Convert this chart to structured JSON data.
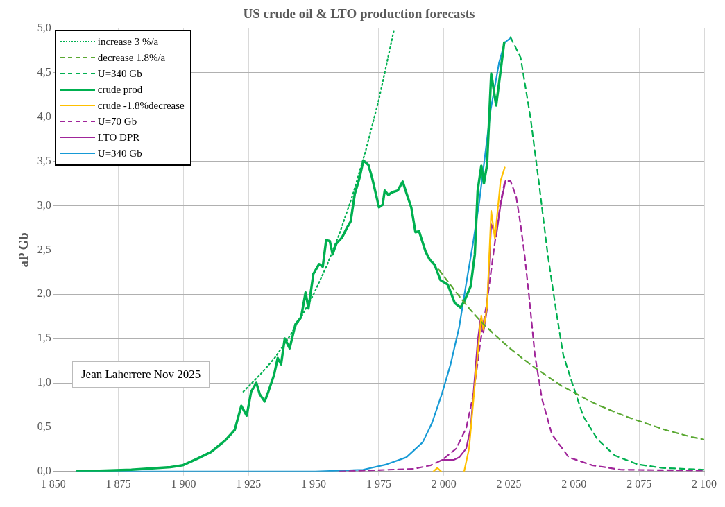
{
  "chart_data": {
    "type": "line",
    "title": "US crude oil & LTO production forecasts",
    "ylabel": "aP Gb",
    "xlim": [
      1850,
      2100
    ],
    "xticks": [
      {
        "value": 1850,
        "label": "1 850"
      },
      {
        "value": 1875,
        "label": "1 875"
      },
      {
        "value": 1900,
        "label": "1 900"
      },
      {
        "value": 1925,
        "label": "1 925"
      },
      {
        "value": 1950,
        "label": "1 950"
      },
      {
        "value": 1975,
        "label": "1 975"
      },
      {
        "value": 2000,
        "label": "2 000"
      },
      {
        "value": 2025,
        "label": "2 025"
      },
      {
        "value": 2050,
        "label": "2 050"
      },
      {
        "value": 2075,
        "label": "2 075"
      },
      {
        "value": 2100,
        "label": "2 100"
      }
    ],
    "ylim": [
      0,
      5
    ],
    "yticks": [
      {
        "value": 0,
        "label": "0,0"
      },
      {
        "value": 0.5,
        "label": "0,5"
      },
      {
        "value": 1,
        "label": "1,0"
      },
      {
        "value": 1.5,
        "label": "1,5"
      },
      {
        "value": 2,
        "label": "2,0"
      },
      {
        "value": 2.5,
        "label": "2,5"
      },
      {
        "value": 3,
        "label": "3,0"
      },
      {
        "value": 3.5,
        "label": "3,5"
      },
      {
        "value": 4,
        "label": "4,0"
      },
      {
        "value": 4.5,
        "label": "4,5"
      },
      {
        "value": 5,
        "label": "5,0"
      }
    ],
    "grid": true,
    "legend": "top left",
    "marker": "none",
    "annotations": [
      "Jean Laherrere Nov 2025"
    ],
    "series": [
      {
        "name": "increase 3 %/a",
        "color": "#00b050",
        "line_style": "dotted",
        "x": [
          1923,
          1930,
          1935,
          1940,
          1945,
          1950,
          1955,
          1960,
          1965,
          1970,
          1975,
          1981
        ],
        "values": [
          0.9,
          1.11,
          1.28,
          1.49,
          1.73,
          2.0,
          2.32,
          2.69,
          3.12,
          3.62,
          4.19,
          5.0
        ]
      },
      {
        "name": "decrease 1.8%/a",
        "color": "#5aa832",
        "line_style": "dashed",
        "x": [
          1998,
          2005,
          2010,
          2015,
          2020,
          2025,
          2030,
          2035,
          2040,
          2045,
          2050,
          2055,
          2060,
          2065,
          2070,
          2075,
          2080,
          2085,
          2090,
          2095,
          2100
        ],
        "values": [
          2.28,
          2.01,
          1.83,
          1.67,
          1.53,
          1.4,
          1.28,
          1.17,
          1.07,
          0.97,
          0.89,
          0.81,
          0.74,
          0.68,
          0.62,
          0.57,
          0.52,
          0.47,
          0.43,
          0.39,
          0.36
        ]
      },
      {
        "name": "U=340 Gb",
        "color": "#00b050",
        "line_style": "dashed",
        "x": [
          2025.6,
          2029.5,
          2033.3,
          2036.6,
          2039.9,
          2043.2,
          2045.9,
          2049.5,
          2053.6,
          2059.1,
          2065.7,
          2074.5,
          2084,
          2100
        ],
        "values": [
          4.9,
          4.67,
          3.99,
          3.24,
          2.45,
          1.8,
          1.31,
          0.98,
          0.62,
          0.36,
          0.18,
          0.08,
          0.04,
          0.02
        ]
      },
      {
        "name": "crude prod",
        "color": "#00b050",
        "line_style": "solid",
        "x": [
          1859,
          1870,
          1880,
          1890,
          1895,
          1899.7,
          1905,
          1910.6,
          1916,
          1919.7,
          1922.2,
          1924.3,
          1926,
          1928,
          1929.3,
          1931.2,
          1932.6,
          1934.8,
          1936.2,
          1937.5,
          1938.9,
          1940.8,
          1943,
          1945.2,
          1946.9,
          1948,
          1949.9,
          1952.1,
          1953.5,
          1954.8,
          1956.2,
          1957.3,
          1958.7,
          1960.9,
          1962.8,
          1964.2,
          1965.8,
          1967.7,
          1969.1,
          1971,
          1972.4,
          1975.1,
          1976.5,
          1977.3,
          1978.7,
          1980.1,
          1982.3,
          1984.2,
          1986.1,
          1987.5,
          1989.1,
          1990.5,
          1993,
          1994.6,
          1996.5,
          1998.7,
          2001.5,
          2004.2,
          2006.4,
          2008,
          2010.3,
          2011.9,
          2013,
          2014.4,
          2015.4,
          2016.6,
          2018.2,
          2020.1,
          2023.2
        ],
        "values": [
          0,
          0.01,
          0.02,
          0.04,
          0.05,
          0.07,
          0.14,
          0.22,
          0.35,
          0.47,
          0.74,
          0.63,
          0.9,
          1.0,
          0.87,
          0.79,
          0.9,
          1.09,
          1.28,
          1.21,
          1.5,
          1.39,
          1.66,
          1.74,
          2.02,
          1.84,
          2.23,
          2.34,
          2.31,
          2.61,
          2.6,
          2.45,
          2.57,
          2.64,
          2.75,
          2.82,
          3.13,
          3.32,
          3.51,
          3.46,
          3.32,
          2.98,
          3.01,
          3.17,
          3.12,
          3.15,
          3.17,
          3.27,
          3.1,
          2.98,
          2.7,
          2.71,
          2.48,
          2.39,
          2.33,
          2.16,
          2.11,
          1.9,
          1.85,
          1.93,
          2.09,
          2.45,
          3.17,
          3.45,
          3.25,
          3.46,
          4.49,
          4.13,
          4.84
        ]
      },
      {
        "name": "crude -1.8%decrease",
        "color": "#ffc000",
        "line_style": "solid",
        "x": [
          1996,
          1997.5,
          1999,
          2003,
          2007.8,
          2009.7,
          2011.9,
          2014.4,
          2015.2,
          2016.6,
          2018.2,
          2019.6,
          2021.8,
          2023.4
        ],
        "values": [
          0,
          0.04,
          0,
          null,
          0,
          0.26,
          0.98,
          1.76,
          1.6,
          1.86,
          2.94,
          2.63,
          3.28,
          3.43
        ]
      },
      {
        "name": "U=70 Gb",
        "color": "#a0259a",
        "line_style": "dashed",
        "x": [
          1960,
          1988.3,
          1995,
          1999.3,
          2004.8,
          2008.6,
          2011.4,
          2014.1,
          2016.8,
          2019.6,
          2021.8,
          2023.4,
          2025.6,
          2027.8,
          2029.5,
          2031,
          2032.8,
          2035,
          2037.7,
          2041.5,
          2048,
          2057,
          2068,
          2100
        ],
        "values": [
          0,
          0.03,
          0.07,
          0.13,
          0.26,
          0.49,
          0.88,
          1.47,
          1.96,
          2.58,
          3.04,
          3.27,
          3.28,
          3.1,
          2.78,
          2.45,
          1.96,
          1.31,
          0.82,
          0.42,
          0.16,
          0.07,
          0.02,
          0.01
        ]
      },
      {
        "name": "LTO DPR",
        "color": "#a0259a",
        "line_style": "solid",
        "x": [
          1999.3,
          2003.7,
          2005.9,
          2008.6,
          2010.3,
          2013,
          2014.1,
          2015.2,
          2016.6,
          2018.2,
          2020.1,
          2021.8,
          2023.7
        ],
        "values": [
          0.13,
          0.13,
          0.16,
          0.26,
          0.49,
          1.47,
          1.72,
          1.57,
          1.83,
          2.79,
          2.65,
          3.01,
          3.28
        ]
      },
      {
        "name": "U=340 Gb",
        "color": "#169ad6",
        "line_style": "solid",
        "x": [
          1859,
          1900,
          1950.7,
          1969,
          1978,
          1985.6,
          1991.9,
          1995.5,
          1999.3,
          2002.6,
          2005.9,
          2008.6,
          2011.4,
          2013.6,
          2015.8,
          2018,
          2021.2,
          2023.4,
          2025.6
        ],
        "values": [
          0,
          0,
          0,
          0.02,
          0.08,
          0.16,
          0.33,
          0.55,
          0.88,
          1.21,
          1.63,
          2.12,
          2.61,
          3.04,
          3.56,
          4.08,
          4.61,
          4.84,
          4.89
        ]
      }
    ]
  }
}
